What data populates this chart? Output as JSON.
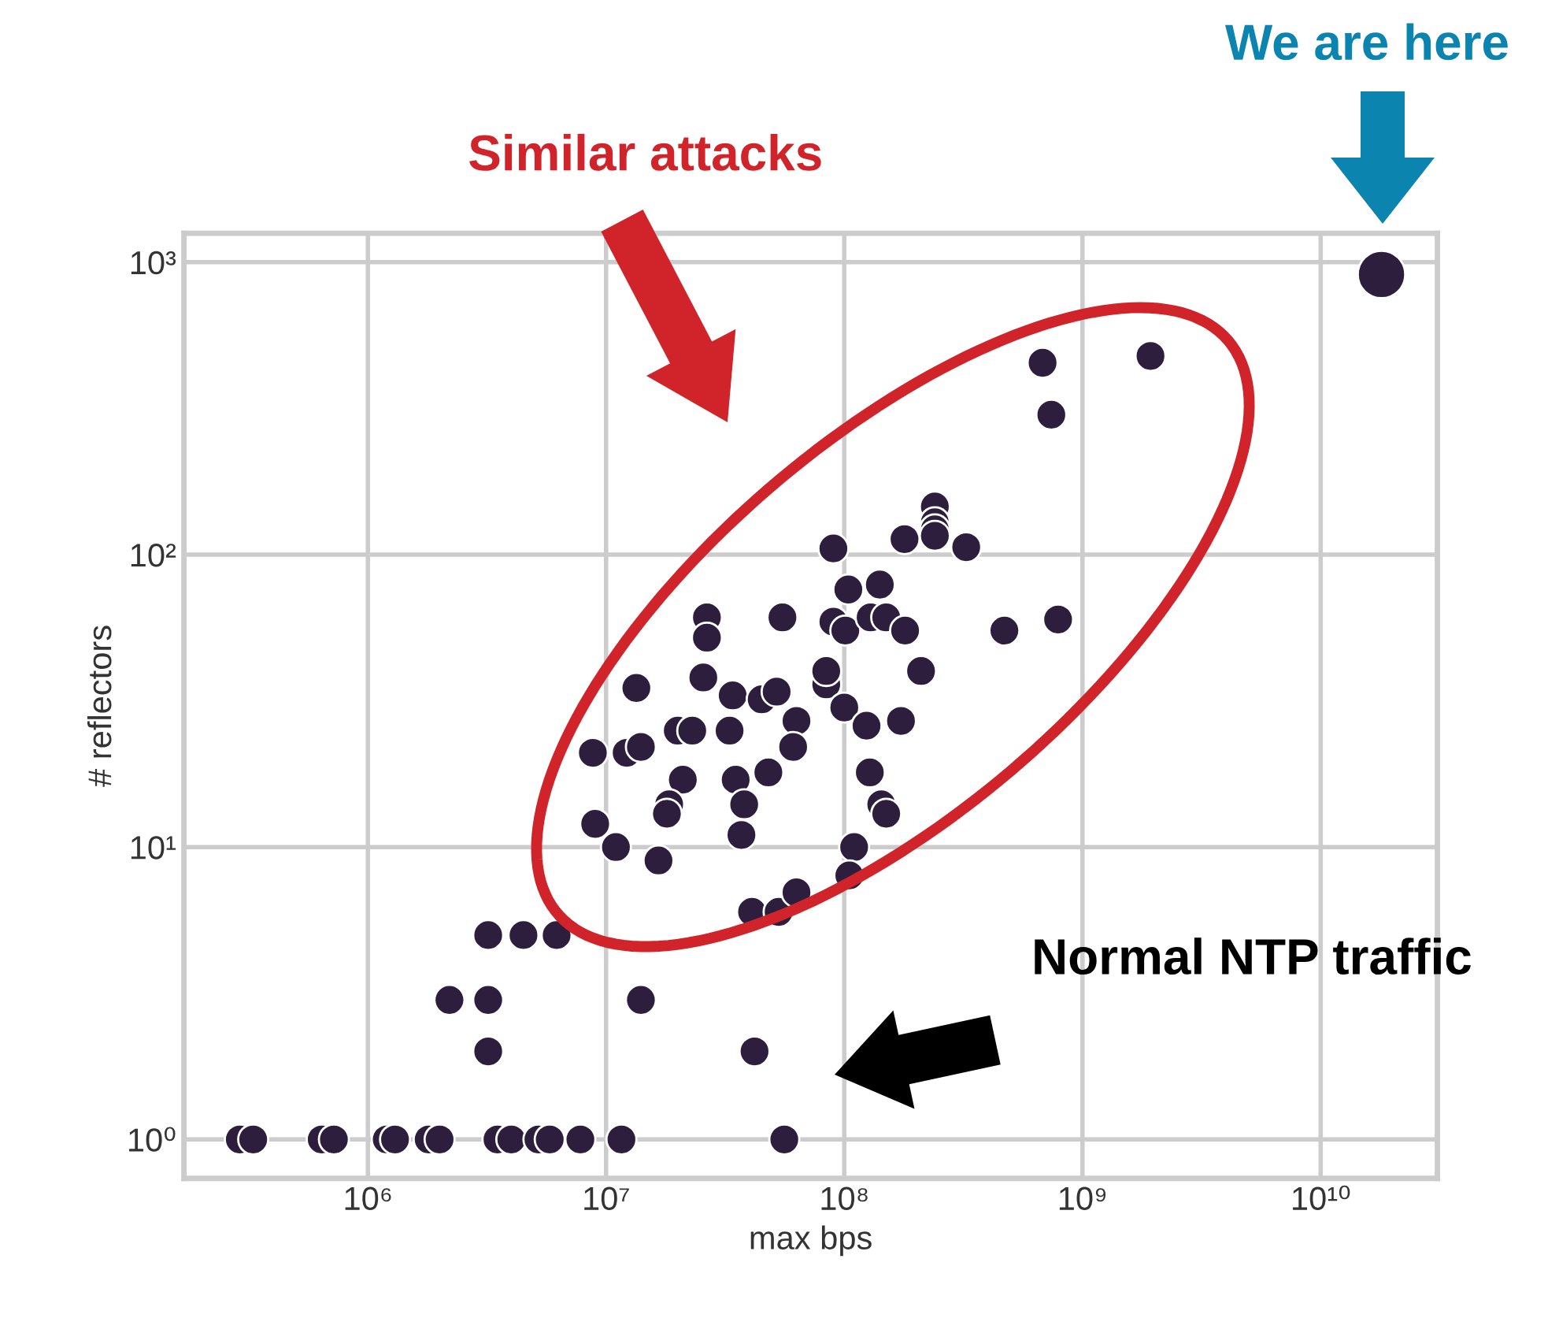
{
  "chart_data": {
    "type": "bubble",
    "xlabel": "max bps",
    "ylabel": "# reflectors",
    "annotations": [
      "Similar attacks",
      "Normal NTP traffic",
      "We are here"
    ],
    "series": [
      {
        "color": "#2d1e3e",
        "x": [
          290000,
          330000,
          640000,
          720000,
          1200000,
          1300000,
          1800000,
          2000000,
          3500000,
          4000000,
          5200000,
          5800000,
          7800000,
          11600000,
          56000000,
          3200000,
          42000000,
          2200000,
          3200000,
          14000000,
          3200000,
          4500000,
          6200000,
          13400000,
          25600000,
          34000000,
          45000000,
          52000000,
          63000000,
          61000000,
          8800000,
          12200000,
          14000000,
          20000000,
          23000000,
          33000000,
          21000000,
          18400000,
          18000000,
          35000000,
          48000000,
          38000000,
          37000000,
          9000000,
          11000000,
          16600000,
          41000000,
          53000000,
          63000000,
          210000000,
          84000000,
          84000000,
          100000000,
          124000000,
          173000000,
          128000000,
          143000000,
          150000000,
          110000000,
          105000000,
          18000000000,
          680000000,
          1930000000,
          740000000,
          240000000,
          240000000,
          240000000,
          240000000,
          179000000,
          325000000,
          90000000,
          104000000,
          141000000,
          90000000,
          101000000,
          129000000,
          150000000,
          180000000,
          470000000,
          790000000,
          26500000,
          26500000,
          55000000
        ],
        "values": [
          1,
          1,
          1,
          1,
          1,
          1,
          1,
          1,
          1,
          1,
          1,
          1,
          1,
          1,
          1,
          2,
          2,
          3,
          3,
          3,
          5,
          5,
          5,
          35,
          38,
          33,
          32,
          34,
          27,
          22,
          21,
          21,
          22,
          25,
          25,
          25,
          17,
          14,
          13,
          17,
          18,
          14,
          11,
          12,
          10,
          9,
          6,
          6,
          7,
          40,
          36,
          40,
          30,
          26,
          27,
          18,
          14,
          13,
          10,
          8,
          908,
          453,
          478,
          301,
          146,
          129,
          122,
          116,
          113,
          106,
          105,
          76,
          79,
          59,
          55,
          61,
          61,
          55,
          55,
          60,
          61,
          52,
          61
        ],
        "sizes": [
          0.4,
          0.4,
          0.4,
          0.4,
          0.4,
          0.4,
          0.4,
          0.4,
          0.4,
          0.4,
          0.4,
          0.4,
          0.4,
          0.4,
          0.4,
          0.4,
          0.4,
          0.4,
          0.4,
          0.4,
          0.4,
          0.4,
          0.4,
          0.4,
          0.4,
          0.4,
          0.4,
          0.4,
          0.4,
          0.4,
          0.4,
          0.4,
          0.4,
          0.4,
          0.4,
          0.4,
          0.4,
          0.4,
          0.4,
          0.4,
          0.4,
          0.4,
          0.4,
          0.4,
          0.4,
          0.4,
          0.4,
          0.4,
          0.4,
          0.4,
          0.4,
          0.4,
          0.4,
          0.4,
          0.4,
          0.4,
          0.4,
          0.4,
          0.4,
          0.4,
          1,
          0.4,
          0.4,
          0.4,
          0.4,
          0.4,
          0.4,
          0.4,
          0.4,
          0.4,
          0.4,
          0.4,
          0.4,
          0.4,
          0.4,
          0.4,
          0.4,
          0.4,
          0.4,
          0.4,
          0.4,
          0.4,
          0.4
        ]
      }
    ],
    "log": "xy",
    "xlim": [
      169000,
      30900000000
    ],
    "ylim": [
      0.736,
      1256
    ],
    "xticks": [
      {
        "value": 1000000,
        "label": "10⁶"
      },
      {
        "value": 10000000,
        "label": "10⁷"
      },
      {
        "value": 100000000,
        "label": "10⁸"
      },
      {
        "value": 1000000000,
        "label": "10⁹"
      },
      {
        "value": 10000000000,
        "label": "10¹⁰"
      }
    ],
    "yticks": [
      {
        "value": 1,
        "label": "10⁰"
      },
      {
        "value": 10,
        "label": "10¹"
      },
      {
        "value": 100,
        "label": "10²"
      },
      {
        "value": 1000,
        "label": "10³"
      }
    ],
    "grid": true
  }
}
